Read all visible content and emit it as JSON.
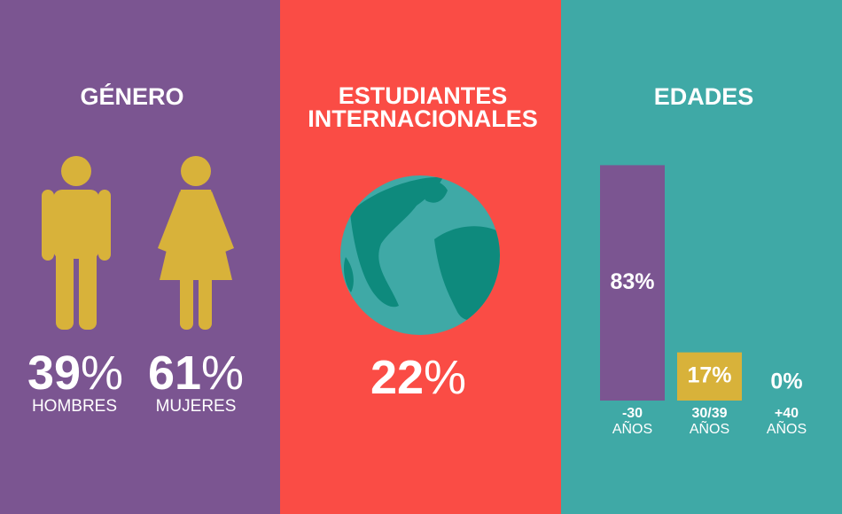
{
  "gender": {
    "title": "GÉNERO",
    "items": [
      {
        "value": 39,
        "symbol": "%",
        "label": "HOMBRES"
      },
      {
        "value": 61,
        "symbol": "%",
        "label": "MUJERES"
      }
    ]
  },
  "international": {
    "title_lines": [
      "ESTUDIANTES",
      "INTERNACIONALES"
    ],
    "value": 22,
    "symbol": "%"
  },
  "ages": {
    "title": "EDADES",
    "categories": [
      {
        "range": "-30",
        "unit": "AÑOS"
      },
      {
        "range": "30/39",
        "unit": "AÑOS"
      },
      {
        "range": "+40",
        "unit": "AÑOS"
      }
    ],
    "values": [
      83,
      17,
      0
    ],
    "value_labels": [
      "83%",
      "17%",
      "0%"
    ],
    "colors": [
      "#7b5591",
      "#d8b23a",
      "#d8b23a"
    ]
  }
}
